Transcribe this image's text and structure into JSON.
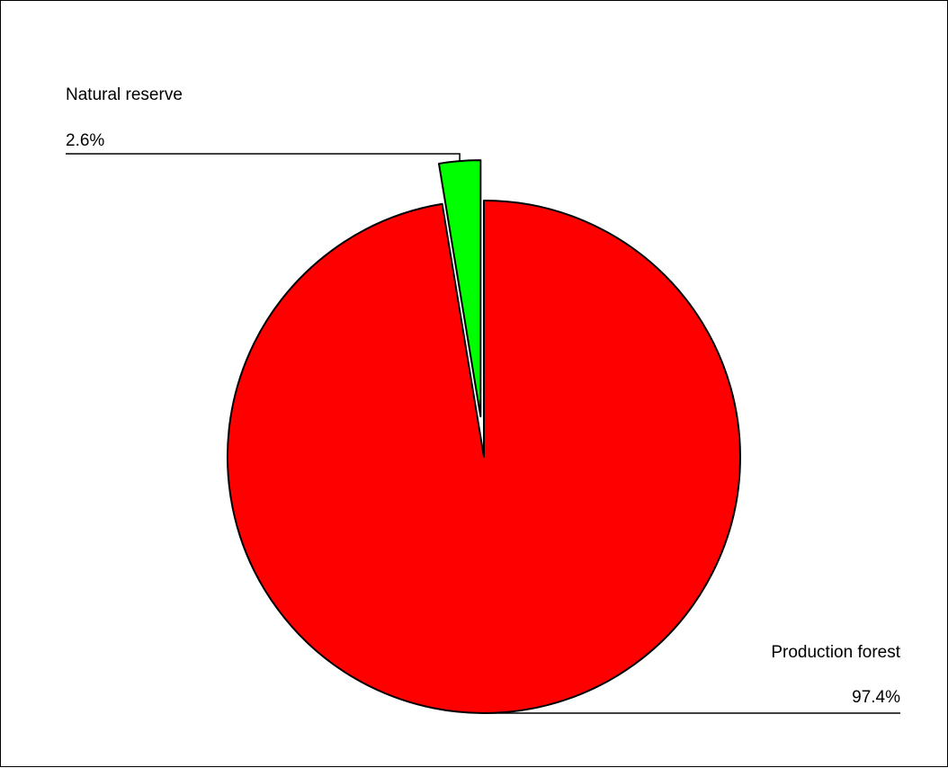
{
  "chart_data": {
    "type": "pie",
    "title": "",
    "slices": [
      {
        "label": "Natural reserve",
        "value": 2.6,
        "value_label": "2.6%",
        "color": "#00ff00",
        "exploded": true
      },
      {
        "label": "Production forest",
        "value": 97.4,
        "value_label": "97.4%",
        "color": "#ff0000",
        "exploded": false
      }
    ],
    "start_angle": "12 o'clock",
    "direction": "counter-clockwise",
    "edge_color": "#000000",
    "legend": "none"
  }
}
